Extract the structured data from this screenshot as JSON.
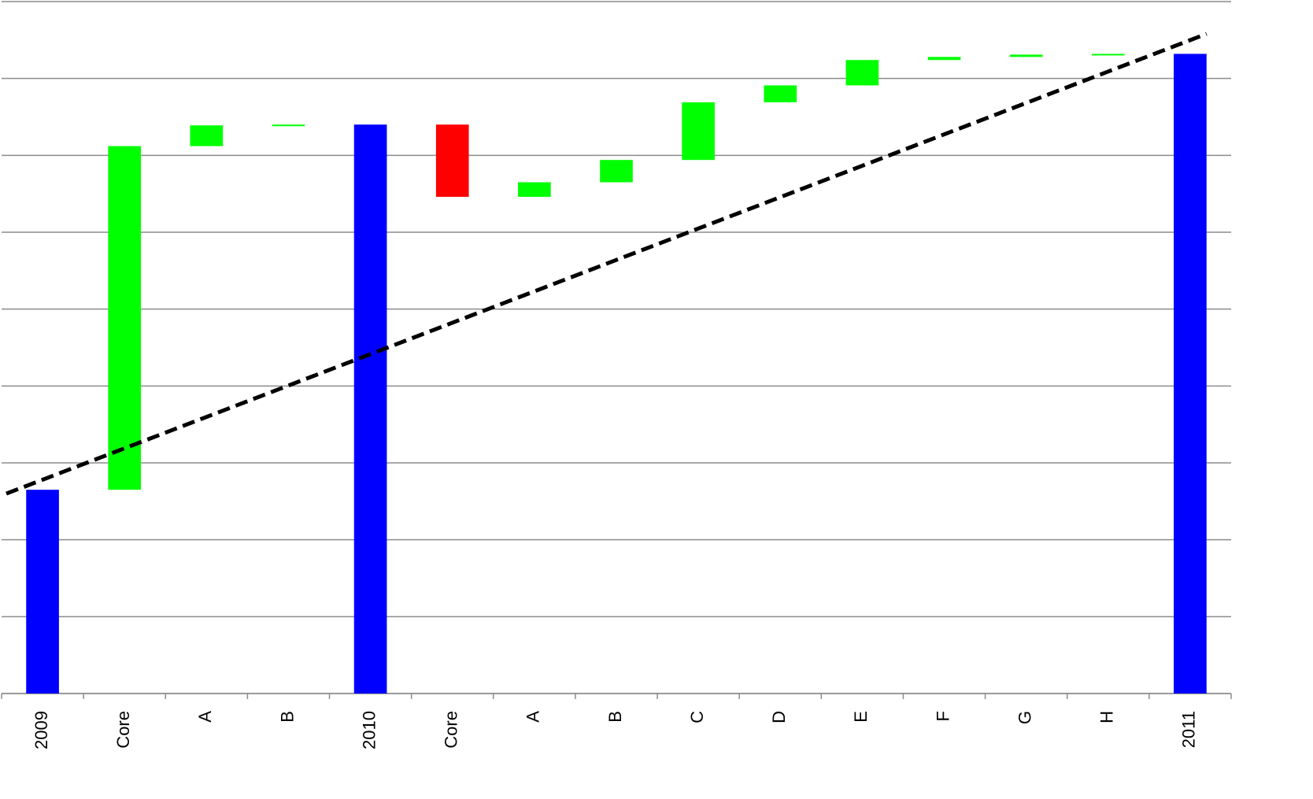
{
  "chart_data": {
    "type": "waterfall",
    "categories": [
      "2009",
      "Core",
      "A",
      "B",
      "2010",
      "Core",
      "A",
      "B",
      "C",
      "D",
      "E",
      "F",
      "G",
      "H",
      "2011"
    ],
    "measure": [
      "total",
      "relative",
      "relative",
      "relative",
      "total",
      "relative",
      "relative",
      "relative",
      "relative",
      "relative",
      "relative",
      "relative",
      "relative",
      "relative",
      "total"
    ],
    "values": [
      2.65,
      4.47,
      0.27,
      0.01,
      7.4,
      -0.94,
      0.19,
      0.29,
      0.75,
      0.22,
      0.33,
      0.04,
      0.03,
      0.01,
      8.32
    ],
    "colors": {
      "total": "#0000ff",
      "increase": "#00ff00",
      "decrease": "#ff0000"
    },
    "trendline": {
      "values": [
        2.6,
        8.58
      ],
      "color": "#000000"
    },
    "ylim": [
      0,
      9
    ],
    "yticks": [
      0,
      1,
      2,
      3,
      4,
      5,
      6,
      7,
      8,
      9
    ],
    "grid": true
  }
}
